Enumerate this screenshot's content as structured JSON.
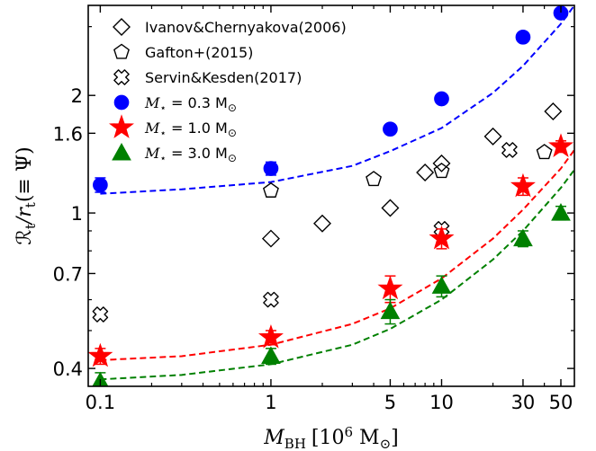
{
  "chart_data": {
    "type": "scatter",
    "xscale": "log",
    "yscale": "log",
    "xlim": [
      0.085,
      60
    ],
    "ylim": [
      0.36,
      3.4
    ],
    "xticks": [
      {
        "value": 0.1,
        "label": "0.1"
      },
      {
        "value": 1,
        "label": "1"
      },
      {
        "value": 5,
        "label": "5"
      },
      {
        "value": 10,
        "label": "10"
      },
      {
        "value": 30,
        "label": "30"
      },
      {
        "value": 50,
        "label": "50"
      }
    ],
    "yticks": [
      {
        "value": 0.4,
        "label": "0.4"
      },
      {
        "value": 0.7,
        "label": "0.7"
      },
      {
        "value": 1,
        "label": "1"
      },
      {
        "value": 1.6,
        "label": "1.6"
      },
      {
        "value": 2,
        "label": "2"
      }
    ],
    "xlabel": {
      "main": "M",
      "sub": "BH",
      "rest": "[10",
      "sup": "6",
      "unit": " M",
      "unit_sub": "⊙",
      "close": "]"
    },
    "ylabel": {
      "main": "ℛ",
      "sub": "t",
      "mid": "/r",
      "sub2": "t",
      "rest": "(≡ Ψ)"
    },
    "legend_position": "upper-left",
    "series": [
      {
        "name": "Ivanov&Chernyakova(2006)",
        "marker": "diamond",
        "filled": false,
        "color": "#000000",
        "points": [
          [
            1,
            0.86
          ],
          [
            2,
            0.94
          ],
          [
            5,
            1.03
          ],
          [
            8,
            1.27
          ],
          [
            10,
            1.34
          ],
          [
            20,
            1.57
          ],
          [
            45,
            1.82
          ]
        ]
      },
      {
        "name": "Gafton+(2015)",
        "marker": "pentagon",
        "filled": false,
        "color": "#000000",
        "points": [
          [
            1,
            1.14
          ],
          [
            4,
            1.22
          ],
          [
            10,
            1.28
          ],
          [
            40,
            1.43
          ]
        ]
      },
      {
        "name": "Servin&Kesden(2017)",
        "marker": "cross",
        "filled": false,
        "color": "#000000",
        "points": [
          [
            0.1,
            0.55
          ],
          [
            1,
            0.6
          ],
          [
            10,
            0.91
          ],
          [
            25,
            1.45
          ]
        ]
      },
      {
        "name_main": "M",
        "name_sub": "⋆",
        "name_rest": " = 0.3 M",
        "name_unit_sub": "⊙",
        "marker": "circle",
        "filled": true,
        "color": "#0000ff",
        "points": [
          [
            0.1,
            1.18
          ],
          [
            1,
            1.3
          ],
          [
            5,
            1.64
          ],
          [
            10,
            1.96
          ],
          [
            30,
            2.82
          ],
          [
            50,
            3.25
          ]
        ],
        "errors": [
          0.05,
          0.05,
          0.04,
          0.04,
          0.05,
          0.05
        ],
        "fit": [
          [
            0.1,
            1.12
          ],
          [
            0.3,
            1.15
          ],
          [
            1,
            1.2
          ],
          [
            3,
            1.32
          ],
          [
            5,
            1.44
          ],
          [
            10,
            1.65
          ],
          [
            20,
            2.03
          ],
          [
            30,
            2.38
          ],
          [
            50,
            3.05
          ],
          [
            60,
            3.4
          ]
        ]
      },
      {
        "name_main": "M",
        "name_sub": "⋆",
        "name_rest": " = 1.0 M",
        "name_unit_sub": "⊙",
        "marker": "star",
        "filled": true,
        "color": "#ff0000",
        "points": [
          [
            0.1,
            0.43
          ],
          [
            1,
            0.48
          ],
          [
            5,
            0.64
          ],
          [
            10,
            0.86
          ],
          [
            30,
            1.17
          ],
          [
            50,
            1.48
          ]
        ],
        "errors": [
          0.02,
          0.02,
          0.05,
          0.05,
          0.06,
          0.05
        ],
        "fit": [
          [
            0.1,
            0.42
          ],
          [
            0.3,
            0.43
          ],
          [
            1,
            0.46
          ],
          [
            3,
            0.52
          ],
          [
            5,
            0.57
          ],
          [
            10,
            0.68
          ],
          [
            20,
            0.86
          ],
          [
            30,
            1.02
          ],
          [
            50,
            1.3
          ],
          [
            60,
            1.45
          ]
        ]
      },
      {
        "name_main": "M",
        "name_sub": "⋆",
        "name_rest": " = 3.0 M",
        "name_unit_sub": "⊙",
        "marker": "triangle",
        "filled": true,
        "color": "#008000",
        "points": [
          [
            0.1,
            0.37
          ],
          [
            1,
            0.43
          ],
          [
            5,
            0.56
          ],
          [
            10,
            0.65
          ],
          [
            30,
            0.86
          ],
          [
            50,
            1.0
          ]
        ],
        "errors": [
          0.02,
          0.02,
          0.04,
          0.04,
          0.04,
          0.04
        ],
        "fit": [
          [
            0.1,
            0.375
          ],
          [
            0.3,
            0.385
          ],
          [
            1,
            0.41
          ],
          [
            3,
            0.46
          ],
          [
            5,
            0.505
          ],
          [
            10,
            0.6
          ],
          [
            20,
            0.76
          ],
          [
            30,
            0.9
          ],
          [
            50,
            1.16
          ],
          [
            60,
            1.29
          ]
        ]
      }
    ]
  }
}
